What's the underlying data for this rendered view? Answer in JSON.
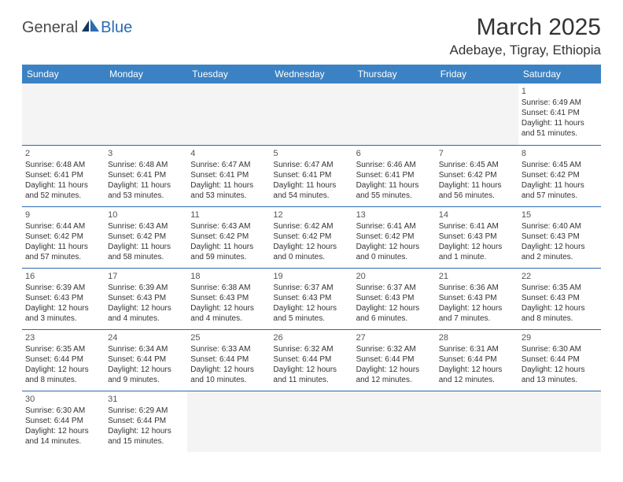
{
  "logo": {
    "part1": "General",
    "part2": "Blue"
  },
  "title": "March 2025",
  "location": "Adebaye, Tigray, Ethiopia",
  "colors": {
    "header_bg": "#3b82c4",
    "header_text": "#ffffff",
    "border": "#2b6bb2",
    "blank_bg": "#f4f4f4",
    "body_text": "#333333",
    "logo_gray": "#4a4a4a",
    "logo_blue": "#2b6bb2"
  },
  "day_headers": [
    "Sunday",
    "Monday",
    "Tuesday",
    "Wednesday",
    "Thursday",
    "Friday",
    "Saturday"
  ],
  "weeks": [
    [
      null,
      null,
      null,
      null,
      null,
      null,
      {
        "n": "1",
        "sr": "Sunrise: 6:49 AM",
        "ss": "Sunset: 6:41 PM",
        "d1": "Daylight: 11 hours",
        "d2": "and 51 minutes."
      }
    ],
    [
      {
        "n": "2",
        "sr": "Sunrise: 6:48 AM",
        "ss": "Sunset: 6:41 PM",
        "d1": "Daylight: 11 hours",
        "d2": "and 52 minutes."
      },
      {
        "n": "3",
        "sr": "Sunrise: 6:48 AM",
        "ss": "Sunset: 6:41 PM",
        "d1": "Daylight: 11 hours",
        "d2": "and 53 minutes."
      },
      {
        "n": "4",
        "sr": "Sunrise: 6:47 AM",
        "ss": "Sunset: 6:41 PM",
        "d1": "Daylight: 11 hours",
        "d2": "and 53 minutes."
      },
      {
        "n": "5",
        "sr": "Sunrise: 6:47 AM",
        "ss": "Sunset: 6:41 PM",
        "d1": "Daylight: 11 hours",
        "d2": "and 54 minutes."
      },
      {
        "n": "6",
        "sr": "Sunrise: 6:46 AM",
        "ss": "Sunset: 6:41 PM",
        "d1": "Daylight: 11 hours",
        "d2": "and 55 minutes."
      },
      {
        "n": "7",
        "sr": "Sunrise: 6:45 AM",
        "ss": "Sunset: 6:42 PM",
        "d1": "Daylight: 11 hours",
        "d2": "and 56 minutes."
      },
      {
        "n": "8",
        "sr": "Sunrise: 6:45 AM",
        "ss": "Sunset: 6:42 PM",
        "d1": "Daylight: 11 hours",
        "d2": "and 57 minutes."
      }
    ],
    [
      {
        "n": "9",
        "sr": "Sunrise: 6:44 AM",
        "ss": "Sunset: 6:42 PM",
        "d1": "Daylight: 11 hours",
        "d2": "and 57 minutes."
      },
      {
        "n": "10",
        "sr": "Sunrise: 6:43 AM",
        "ss": "Sunset: 6:42 PM",
        "d1": "Daylight: 11 hours",
        "d2": "and 58 minutes."
      },
      {
        "n": "11",
        "sr": "Sunrise: 6:43 AM",
        "ss": "Sunset: 6:42 PM",
        "d1": "Daylight: 11 hours",
        "d2": "and 59 minutes."
      },
      {
        "n": "12",
        "sr": "Sunrise: 6:42 AM",
        "ss": "Sunset: 6:42 PM",
        "d1": "Daylight: 12 hours",
        "d2": "and 0 minutes."
      },
      {
        "n": "13",
        "sr": "Sunrise: 6:41 AM",
        "ss": "Sunset: 6:42 PM",
        "d1": "Daylight: 12 hours",
        "d2": "and 0 minutes."
      },
      {
        "n": "14",
        "sr": "Sunrise: 6:41 AM",
        "ss": "Sunset: 6:43 PM",
        "d1": "Daylight: 12 hours",
        "d2": "and 1 minute."
      },
      {
        "n": "15",
        "sr": "Sunrise: 6:40 AM",
        "ss": "Sunset: 6:43 PM",
        "d1": "Daylight: 12 hours",
        "d2": "and 2 minutes."
      }
    ],
    [
      {
        "n": "16",
        "sr": "Sunrise: 6:39 AM",
        "ss": "Sunset: 6:43 PM",
        "d1": "Daylight: 12 hours",
        "d2": "and 3 minutes."
      },
      {
        "n": "17",
        "sr": "Sunrise: 6:39 AM",
        "ss": "Sunset: 6:43 PM",
        "d1": "Daylight: 12 hours",
        "d2": "and 4 minutes."
      },
      {
        "n": "18",
        "sr": "Sunrise: 6:38 AM",
        "ss": "Sunset: 6:43 PM",
        "d1": "Daylight: 12 hours",
        "d2": "and 4 minutes."
      },
      {
        "n": "19",
        "sr": "Sunrise: 6:37 AM",
        "ss": "Sunset: 6:43 PM",
        "d1": "Daylight: 12 hours",
        "d2": "and 5 minutes."
      },
      {
        "n": "20",
        "sr": "Sunrise: 6:37 AM",
        "ss": "Sunset: 6:43 PM",
        "d1": "Daylight: 12 hours",
        "d2": "and 6 minutes."
      },
      {
        "n": "21",
        "sr": "Sunrise: 6:36 AM",
        "ss": "Sunset: 6:43 PM",
        "d1": "Daylight: 12 hours",
        "d2": "and 7 minutes."
      },
      {
        "n": "22",
        "sr": "Sunrise: 6:35 AM",
        "ss": "Sunset: 6:43 PM",
        "d1": "Daylight: 12 hours",
        "d2": "and 8 minutes."
      }
    ],
    [
      {
        "n": "23",
        "sr": "Sunrise: 6:35 AM",
        "ss": "Sunset: 6:44 PM",
        "d1": "Daylight: 12 hours",
        "d2": "and 8 minutes."
      },
      {
        "n": "24",
        "sr": "Sunrise: 6:34 AM",
        "ss": "Sunset: 6:44 PM",
        "d1": "Daylight: 12 hours",
        "d2": "and 9 minutes."
      },
      {
        "n": "25",
        "sr": "Sunrise: 6:33 AM",
        "ss": "Sunset: 6:44 PM",
        "d1": "Daylight: 12 hours",
        "d2": "and 10 minutes."
      },
      {
        "n": "26",
        "sr": "Sunrise: 6:32 AM",
        "ss": "Sunset: 6:44 PM",
        "d1": "Daylight: 12 hours",
        "d2": "and 11 minutes."
      },
      {
        "n": "27",
        "sr": "Sunrise: 6:32 AM",
        "ss": "Sunset: 6:44 PM",
        "d1": "Daylight: 12 hours",
        "d2": "and 12 minutes."
      },
      {
        "n": "28",
        "sr": "Sunrise: 6:31 AM",
        "ss": "Sunset: 6:44 PM",
        "d1": "Daylight: 12 hours",
        "d2": "and 12 minutes."
      },
      {
        "n": "29",
        "sr": "Sunrise: 6:30 AM",
        "ss": "Sunset: 6:44 PM",
        "d1": "Daylight: 12 hours",
        "d2": "and 13 minutes."
      }
    ],
    [
      {
        "n": "30",
        "sr": "Sunrise: 6:30 AM",
        "ss": "Sunset: 6:44 PM",
        "d1": "Daylight: 12 hours",
        "d2": "and 14 minutes."
      },
      {
        "n": "31",
        "sr": "Sunrise: 6:29 AM",
        "ss": "Sunset: 6:44 PM",
        "d1": "Daylight: 12 hours",
        "d2": "and 15 minutes."
      },
      null,
      null,
      null,
      null,
      null
    ]
  ]
}
